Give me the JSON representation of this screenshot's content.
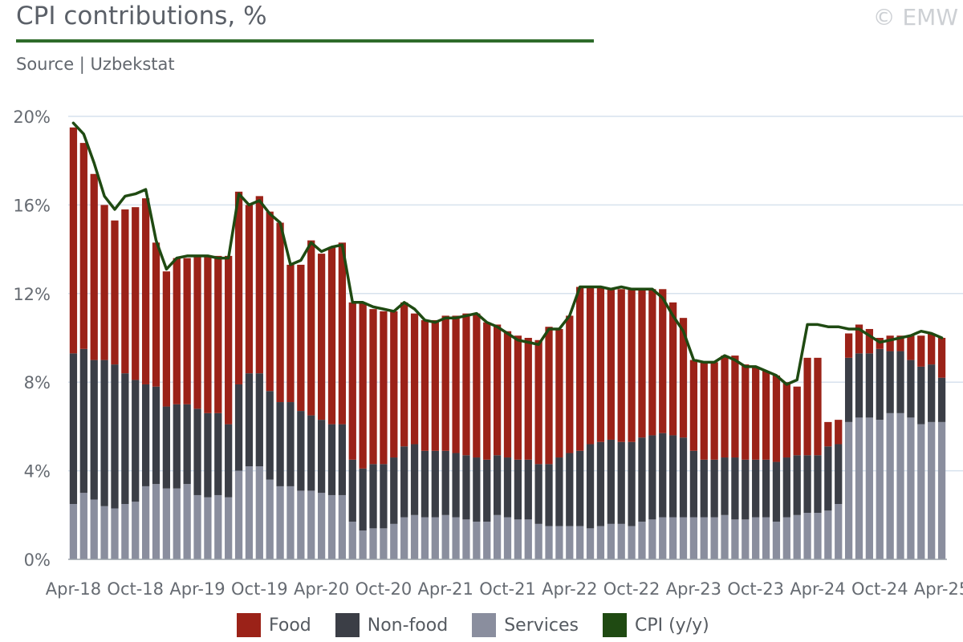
{
  "header": {
    "title": "CPI contributions, %",
    "source": "Source | Uzbekstat",
    "copyright": "© EMW"
  },
  "colors": {
    "food": "#9b2218",
    "nonfood": "#3b3e46",
    "services": "#8a8e9e",
    "cpi": "#1f4a12",
    "grid": "#d7e2ee",
    "axis_text": "#666b72"
  },
  "legend": [
    {
      "label": "Food",
      "color": "#9b2218"
    },
    {
      "label": "Non-food",
      "color": "#3b3e46"
    },
    {
      "label": "Services",
      "color": "#8a8e9e"
    },
    {
      "label": "CPI (y/y)",
      "color": "#1f4a12"
    }
  ],
  "chart_data": {
    "type": "bar",
    "stacked": true,
    "title": "CPI contributions, %",
    "ylim": [
      0,
      20
    ],
    "yticks": [
      "0%",
      "4%",
      "8%",
      "12%",
      "16%",
      "20%"
    ],
    "grid": true,
    "legend_position": "bottom",
    "x_tick_labels": [
      "Apr-18",
      "Oct-18",
      "Apr-19",
      "Oct-19",
      "Apr-20",
      "Oct-20",
      "Apr-21",
      "Oct-21",
      "Apr-22",
      "Oct-22",
      "Apr-23",
      "Oct-23",
      "Apr-24",
      "Oct-24",
      "Apr-25"
    ],
    "x_tick_every": 6,
    "categories": [
      "Apr-18",
      "May-18",
      "Jun-18",
      "Jul-18",
      "Aug-18",
      "Sep-18",
      "Oct-18",
      "Nov-18",
      "Dec-18",
      "Jan-19",
      "Feb-19",
      "Mar-19",
      "Apr-19",
      "May-19",
      "Jun-19",
      "Jul-19",
      "Aug-19",
      "Sep-19",
      "Oct-19",
      "Nov-19",
      "Dec-19",
      "Jan-20",
      "Feb-20",
      "Mar-20",
      "Apr-20",
      "May-20",
      "Jun-20",
      "Jul-20",
      "Aug-20",
      "Sep-20",
      "Oct-20",
      "Nov-20",
      "Dec-20",
      "Jan-21",
      "Feb-21",
      "Mar-21",
      "Apr-21",
      "May-21",
      "Jun-21",
      "Jul-21",
      "Aug-21",
      "Sep-21",
      "Oct-21",
      "Nov-21",
      "Dec-21",
      "Jan-22",
      "Feb-22",
      "Mar-22",
      "Apr-22",
      "May-22",
      "Jun-22",
      "Jul-22",
      "Aug-22",
      "Sep-22",
      "Oct-22",
      "Nov-22",
      "Dec-22",
      "Jan-23",
      "Feb-23",
      "Mar-23",
      "Apr-23",
      "May-23",
      "Jun-23",
      "Jul-23",
      "Aug-23",
      "Sep-23",
      "Oct-23",
      "Nov-23",
      "Dec-23",
      "Jan-24",
      "Feb-24",
      "Mar-24",
      "Apr-24",
      "May-24",
      "Jun-24",
      "Jul-24",
      "Aug-24",
      "Sep-24",
      "Oct-24",
      "Nov-24",
      "Dec-24",
      "Jan-25",
      "Feb-25",
      "Mar-25",
      "Apr-25"
    ],
    "series": [
      {
        "name": "Services",
        "key": "services",
        "values": [
          2.5,
          3.0,
          2.7,
          2.4,
          2.3,
          2.5,
          2.6,
          3.3,
          3.4,
          3.2,
          3.2,
          3.4,
          2.9,
          2.8,
          2.9,
          2.8,
          4.0,
          4.2,
          4.2,
          3.6,
          3.3,
          3.3,
          3.1,
          3.1,
          3.0,
          2.9,
          2.9,
          1.7,
          1.3,
          1.4,
          1.4,
          1.6,
          1.9,
          2.0,
          1.9,
          1.9,
          2.0,
          1.9,
          1.8,
          1.7,
          1.7,
          2.0,
          1.9,
          1.8,
          1.8,
          1.6,
          1.5,
          1.5,
          1.5,
          1.5,
          1.4,
          1.5,
          1.6,
          1.6,
          1.5,
          1.7,
          1.8,
          1.9,
          1.9,
          1.9,
          1.9,
          1.9,
          1.9,
          2.0,
          1.8,
          1.8,
          1.9,
          1.9,
          1.7,
          1.9,
          2.0,
          2.1,
          2.1,
          2.2,
          2.5,
          6.2,
          6.4,
          6.4,
          6.3,
          6.6,
          6.6,
          6.4,
          6.1,
          6.2,
          6.2
        ]
      },
      {
        "name": "Non-food",
        "key": "nonfood",
        "values": [
          6.8,
          6.5,
          6.3,
          6.6,
          6.5,
          5.9,
          5.5,
          4.6,
          4.4,
          3.7,
          3.8,
          3.6,
          3.9,
          3.8,
          3.7,
          3.3,
          3.9,
          4.2,
          4.2,
          4.0,
          3.8,
          3.8,
          3.6,
          3.4,
          3.3,
          3.2,
          3.2,
          2.8,
          2.8,
          2.9,
          2.9,
          3.0,
          3.2,
          3.2,
          3.0,
          3.0,
          2.9,
          2.9,
          2.9,
          2.9,
          2.8,
          2.7,
          2.7,
          2.7,
          2.7,
          2.7,
          2.8,
          3.1,
          3.3,
          3.4,
          3.8,
          3.8,
          3.8,
          3.7,
          3.8,
          3.8,
          3.8,
          3.8,
          3.7,
          3.6,
          3.0,
          2.6,
          2.6,
          2.6,
          2.8,
          2.7,
          2.6,
          2.6,
          2.7,
          2.7,
          2.7,
          2.6,
          2.6,
          2.9,
          2.7,
          2.9,
          2.9,
          2.9,
          3.2,
          2.8,
          2.8,
          2.6,
          2.6,
          2.6,
          2.0
        ]
      },
      {
        "name": "Food",
        "key": "food",
        "values": [
          10.2,
          9.3,
          8.4,
          7.0,
          6.5,
          7.4,
          7.8,
          8.4,
          6.5,
          6.1,
          6.6,
          6.6,
          6.9,
          7.1,
          7.1,
          7.6,
          8.7,
          7.6,
          8.0,
          8.1,
          8.1,
          6.2,
          6.6,
          7.9,
          7.5,
          8.0,
          8.2,
          7.1,
          7.5,
          7.0,
          6.9,
          6.6,
          6.5,
          5.9,
          5.9,
          5.9,
          6.1,
          6.2,
          6.4,
          6.5,
          6.2,
          5.9,
          5.7,
          5.6,
          5.5,
          5.6,
          6.2,
          5.8,
          6.2,
          7.4,
          7.1,
          7.0,
          6.8,
          6.9,
          6.9,
          6.7,
          6.6,
          6.5,
          6.0,
          5.4,
          4.1,
          4.4,
          4.4,
          4.6,
          4.6,
          4.3,
          4.2,
          4.0,
          3.9,
          3.4,
          3.1,
          4.4,
          4.4,
          1.1,
          1.1,
          1.1,
          1.3,
          1.1,
          0.5,
          0.7,
          0.7,
          1.1,
          1.4,
          1.4,
          1.8
        ]
      }
    ],
    "line": {
      "name": "CPI (y/y)",
      "key": "cpi",
      "values": [
        19.7,
        19.2,
        17.9,
        16.4,
        15.8,
        16.4,
        16.5,
        16.7,
        14.4,
        13.1,
        13.6,
        13.7,
        13.7,
        13.7,
        13.6,
        13.6,
        16.5,
        16.0,
        16.2,
        15.6,
        15.2,
        13.3,
        13.5,
        14.3,
        13.9,
        14.1,
        14.2,
        11.6,
        11.6,
        11.4,
        11.3,
        11.2,
        11.6,
        11.3,
        10.8,
        10.7,
        10.9,
        10.9,
        11.0,
        11.1,
        10.7,
        10.5,
        10.2,
        9.9,
        9.8,
        9.7,
        10.4,
        10.4,
        11.0,
        12.3,
        12.3,
        12.3,
        12.2,
        12.3,
        12.2,
        12.2,
        12.2,
        11.8,
        11.0,
        10.3,
        9.0,
        8.9,
        8.9,
        9.2,
        9.0,
        8.7,
        8.7,
        8.5,
        8.3,
        7.9,
        8.1,
        10.6,
        10.6,
        10.5,
        10.5,
        10.4,
        10.4,
        10.1,
        9.8,
        9.9,
        10.0,
        10.1,
        10.3,
        10.2,
        10.0
      ]
    }
  }
}
